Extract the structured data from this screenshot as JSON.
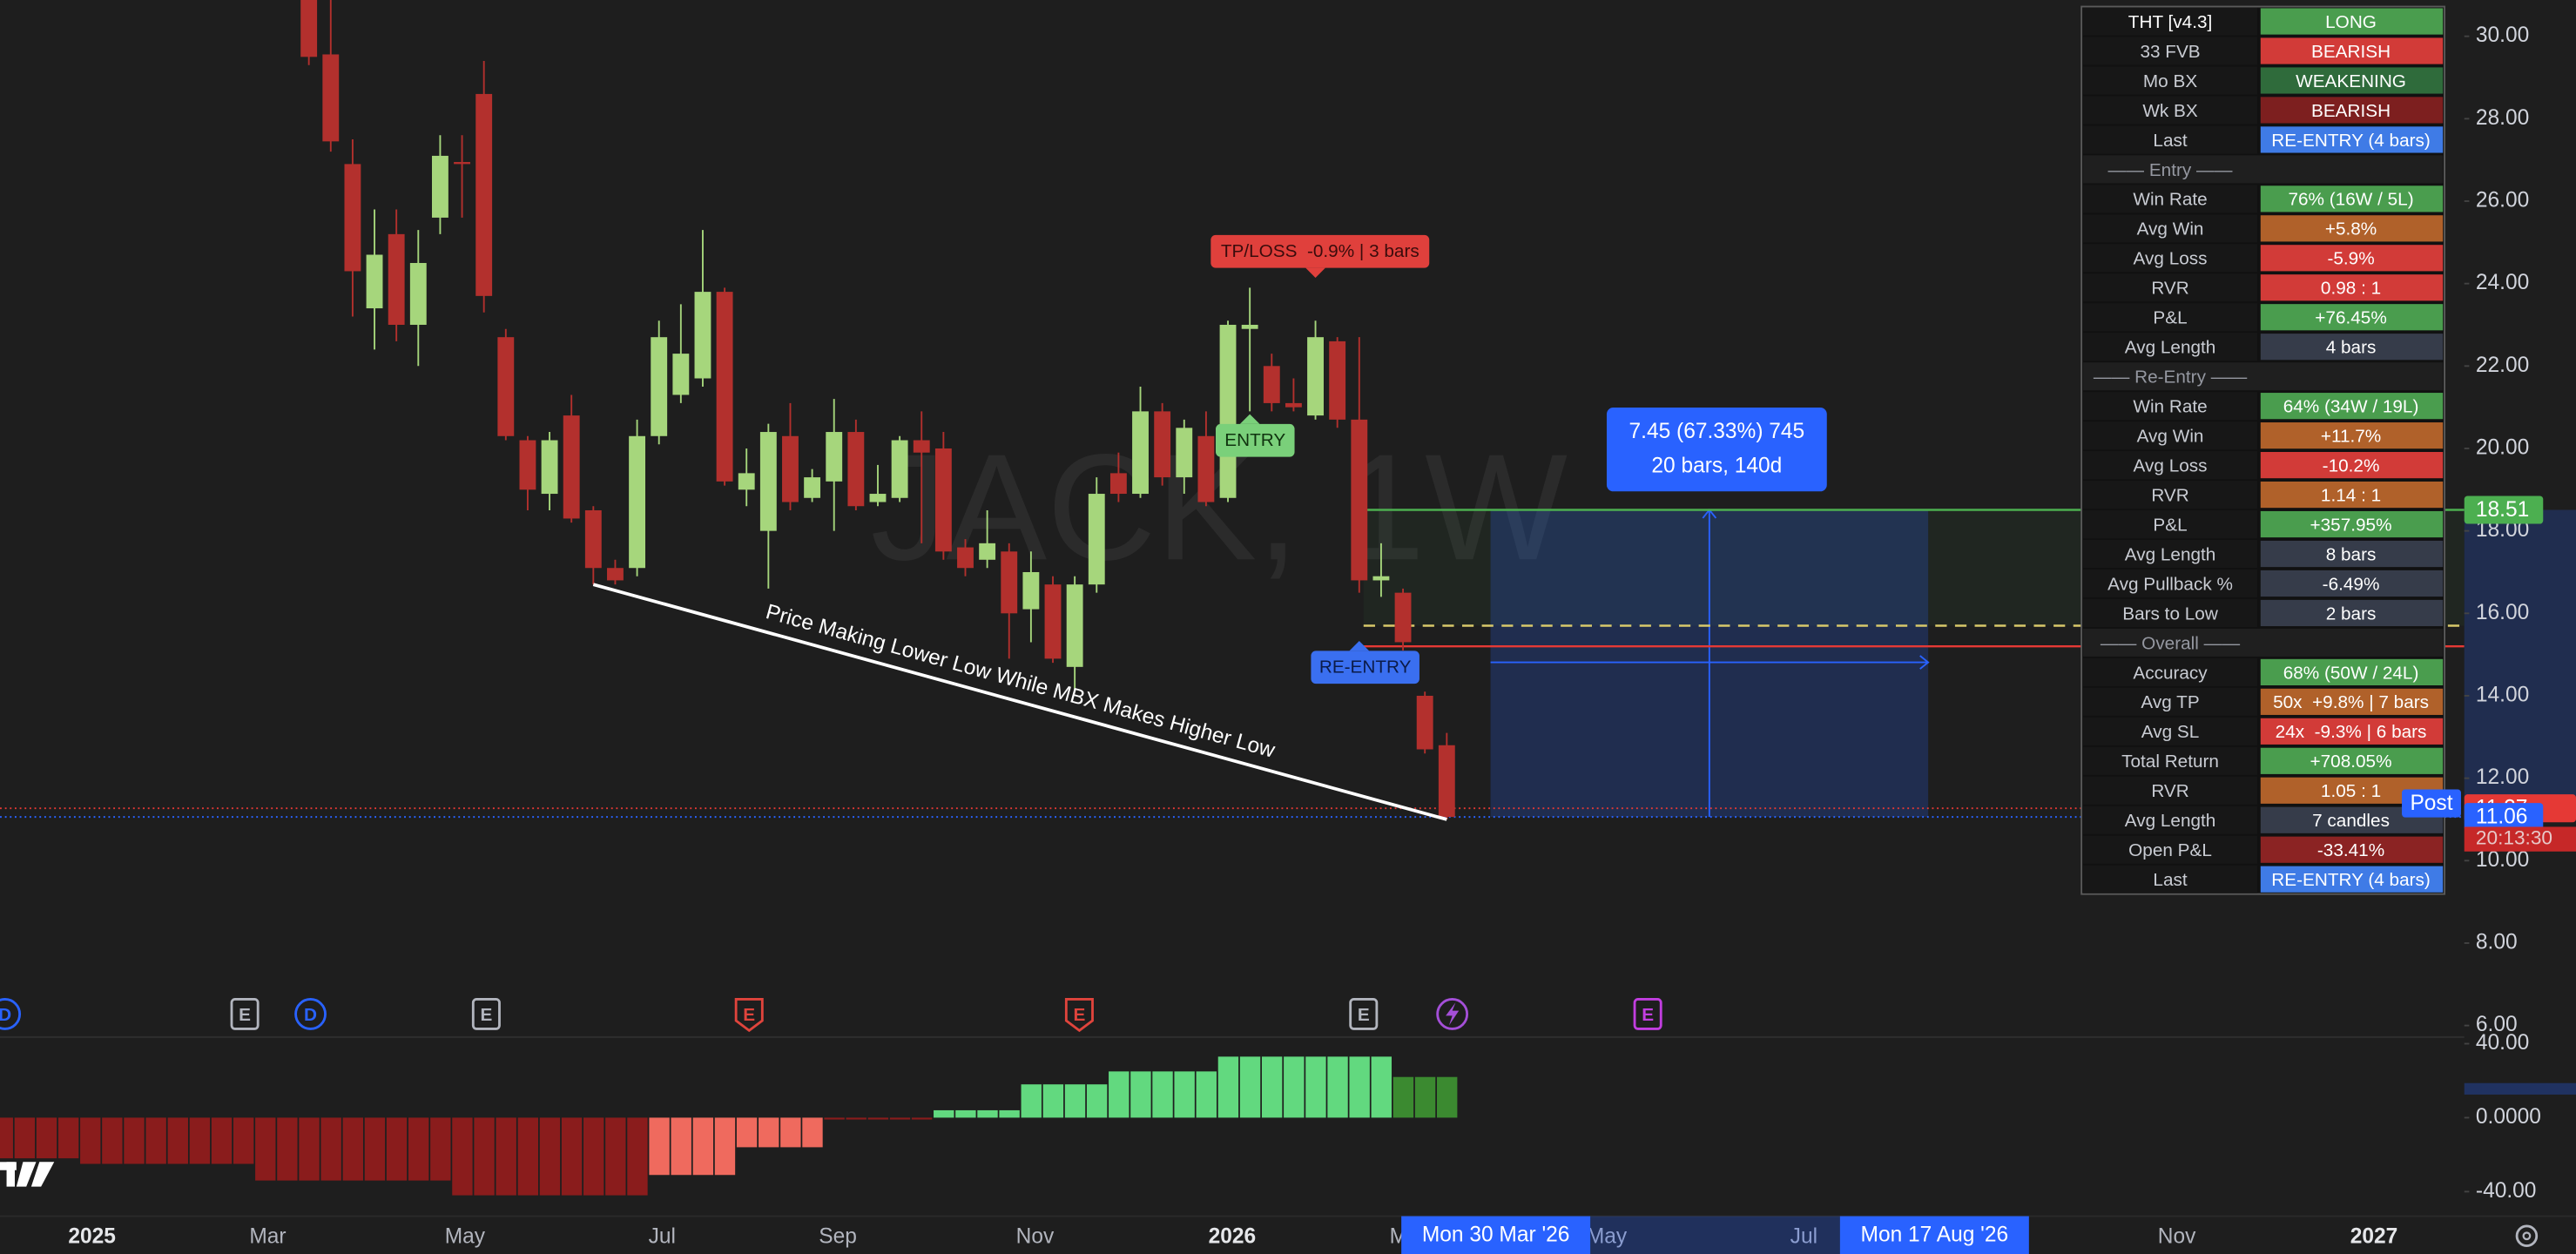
{
  "chart_data": [
    {
      "type": "candlestick",
      "watermark": "JACK, 1W",
      "open": [
        31.2,
        29.56,
        26.9,
        23.4,
        25.2,
        23.0,
        25.6,
        26.95,
        28.6,
        22.7,
        20.2,
        18.9,
        20.8,
        18.5,
        17.1,
        17.1,
        20.3,
        21.3,
        21.7,
        23.8,
        19.0,
        18.0,
        20.3,
        18.8,
        19.2,
        20.4,
        18.7,
        18.8,
        20.2,
        20.0,
        17.6,
        17.3,
        17.5,
        16.1,
        16.7,
        14.7,
        16.7,
        19.4,
        18.9,
        20.9,
        19.3,
        20.3,
        18.8,
        22.9,
        22.0,
        21.1,
        20.8,
        22.6,
        20.7,
        16.8,
        16.5,
        14.0,
        12.8
      ],
      "high": [
        31.5,
        30.9,
        27.5,
        25.8,
        25.8,
        25.3,
        27.6,
        27.6,
        29.4,
        22.9,
        20.3,
        20.4,
        21.3,
        18.6,
        17.3,
        20.7,
        23.1,
        23.5,
        25.3,
        23.9,
        20.0,
        20.6,
        21.1,
        19.5,
        21.2,
        20.7,
        19.6,
        20.3,
        20.9,
        20.4,
        17.8,
        18.5,
        17.7,
        17.5,
        16.9,
        16.9,
        19.3,
        19.9,
        21.5,
        21.1,
        20.7,
        20.9,
        23.1,
        23.9,
        22.3,
        21.7,
        23.1,
        22.7,
        22.7,
        17.7,
        16.6,
        14.1,
        13.1
      ],
      "low": [
        29.3,
        27.2,
        23.2,
        22.4,
        22.6,
        22.0,
        25.2,
        25.6,
        23.3,
        20.2,
        18.5,
        18.5,
        18.2,
        16.7,
        16.7,
        16.9,
        20.1,
        21.1,
        21.5,
        19.1,
        18.6,
        16.6,
        18.5,
        18.7,
        18.0,
        18.5,
        18.6,
        18.7,
        17.7,
        17.3,
        16.9,
        17.1,
        14.9,
        15.3,
        14.8,
        14.1,
        16.5,
        18.7,
        18.8,
        19.1,
        18.9,
        18.6,
        18.7,
        20.9,
        20.9,
        20.9,
        20.7,
        20.5,
        16.5,
        16.4,
        15.1,
        12.6,
        11.0
      ],
      "close": [
        29.5,
        27.45,
        24.3,
        24.7,
        23.0,
        24.5,
        27.1,
        26.9,
        23.7,
        20.3,
        19.0,
        20.2,
        18.3,
        17.1,
        16.8,
        20.3,
        22.7,
        22.3,
        23.8,
        19.2,
        19.4,
        20.4,
        18.7,
        19.3,
        20.4,
        18.6,
        18.9,
        20.2,
        19.9,
        17.5,
        17.1,
        17.7,
        16.0,
        17.0,
        14.9,
        16.7,
        18.9,
        18.9,
        20.9,
        19.3,
        20.5,
        18.7,
        23.0,
        23.0,
        21.1,
        21.0,
        22.7,
        20.7,
        16.8,
        16.9,
        15.3,
        12.7,
        11.06
      ],
      "up_color": "#a6d67c",
      "down_color": "#b3302d",
      "ylim": [
        5.76,
        30.88
      ],
      "yticks": [
        {
          "value": 30,
          "label": "30.00"
        },
        {
          "value": 28,
          "label": "28.00"
        },
        {
          "value": 26,
          "label": "26.00"
        },
        {
          "value": 24,
          "label": "24.00"
        },
        {
          "value": 22,
          "label": "22.00"
        },
        {
          "value": 20,
          "label": "20.00"
        },
        {
          "value": 18,
          "label": "18.00"
        },
        {
          "value": 16,
          "label": "16.00"
        },
        {
          "value": 14,
          "label": "14.00"
        },
        {
          "value": 12,
          "label": "12.00"
        },
        {
          "value": 10,
          "label": "10.00"
        },
        {
          "value": 8,
          "label": "8.00"
        },
        {
          "value": 6,
          "label": "6.00"
        }
      ],
      "levels": [
        {
          "value": 18.51,
          "color": "#4caf50",
          "style": "solid",
          "tag": true
        },
        {
          "value": 15.7,
          "color": "#d8c96a",
          "style": "dashed"
        },
        {
          "value": 15.2,
          "color": "#e53935",
          "style": "solid"
        },
        {
          "value": 11.27,
          "color": "#e53935",
          "style": "dotted",
          "tag": true
        },
        {
          "value": 11.06,
          "color": "#2962ff",
          "style": "dotted",
          "tag": true
        }
      ],
      "countdown": "20:13:30",
      "session": "Post",
      "trendline_text": "Price Making Lower Low While MBX Makes Higher Low",
      "signals": [
        {
          "text": "TP/LOSS  -0.9% | 3 bars",
          "color": "#e0403c",
          "text_color": "#3a0c0c"
        },
        {
          "text": "ENTRY",
          "color": "#7ad07a",
          "text_color": "#10330f"
        },
        {
          "text": "RE-ENTRY",
          "color": "#3a6ff0",
          "text_color": "#0b1b48"
        }
      ],
      "measure": [
        "7.45 (67.33%) 745",
        "20 bars, 140d"
      ]
    },
    {
      "type": "bar",
      "values": [
        -22,
        -22,
        -22,
        -22,
        -25,
        -25,
        -25,
        -25,
        -25,
        -25,
        -25,
        -25,
        -34,
        -34,
        -34,
        -34,
        -34,
        -34,
        -34,
        -34,
        -34,
        -42,
        -42,
        -42,
        -42,
        -42,
        -42,
        -42,
        -42,
        -42,
        -31,
        -31,
        -31,
        -31,
        -16,
        -16,
        -16,
        -16,
        -1,
        -1,
        -1,
        -1,
        -1,
        4,
        4,
        4,
        4,
        18,
        18,
        18,
        18,
        25,
        25,
        25,
        25,
        25,
        33,
        33,
        33,
        33,
        33,
        33,
        33,
        33,
        22,
        22,
        22
      ],
      "colors": [
        "#8a1c1c",
        "#8a1c1c",
        "#8a1c1c",
        "#8a1c1c",
        "#8a1c1c",
        "#8a1c1c",
        "#8a1c1c",
        "#8a1c1c",
        "#8a1c1c",
        "#8a1c1c",
        "#8a1c1c",
        "#8a1c1c",
        "#8a1c1c",
        "#8a1c1c",
        "#8a1c1c",
        "#8a1c1c",
        "#8a1c1c",
        "#8a1c1c",
        "#8a1c1c",
        "#8a1c1c",
        "#8a1c1c",
        "#8a1c1c",
        "#8a1c1c",
        "#8a1c1c",
        "#8a1c1c",
        "#8a1c1c",
        "#8a1c1c",
        "#8a1c1c",
        "#8a1c1c",
        "#8a1c1c",
        "#ef6a5e",
        "#ef6a5e",
        "#ef6a5e",
        "#ef6a5e",
        "#ef6a5e",
        "#ef6a5e",
        "#ef6a5e",
        "#ef6a5e",
        "#8a1c1c",
        "#8a1c1c",
        "#8a1c1c",
        "#8a1c1c",
        "#8a1c1c",
        "#62d97f",
        "#62d97f",
        "#62d97f",
        "#62d97f",
        "#62d97f",
        "#62d97f",
        "#62d97f",
        "#62d97f",
        "#62d97f",
        "#62d97f",
        "#62d97f",
        "#62d97f",
        "#62d97f",
        "#62d97f",
        "#62d97f",
        "#62d97f",
        "#62d97f",
        "#62d97f",
        "#62d97f",
        "#62d97f",
        "#62d97f",
        "#3b8a30",
        "#3b8a30",
        "#3b8a30"
      ],
      "ylim": [
        -53.3,
        42.7
      ],
      "yticks": [
        {
          "value": 40,
          "label": "40.00"
        },
        {
          "value": 0,
          "label": "0.0000"
        },
        {
          "value": -40,
          "label": "-40.00"
        }
      ]
    }
  ],
  "time_axis": {
    "labels": [
      "2025",
      "Mar",
      "May",
      "Jul",
      "Sep",
      "Nov",
      "2026",
      "Mar",
      "May",
      "Jul",
      "Nov",
      "2027"
    ],
    "range_labels": [
      "Mon 30 Mar '26",
      "Mon 17 Aug '26"
    ]
  },
  "markers": [
    {
      "label": "D",
      "shape": "circle",
      "color": "#2962ff"
    },
    {
      "label": "E",
      "shape": "square",
      "color": "#b2b5be"
    },
    {
      "label": "D",
      "shape": "circle",
      "color": "#2962ff"
    },
    {
      "label": "E",
      "shape": "square",
      "color": "#b2b5be"
    },
    {
      "label": "E",
      "shape": "flag",
      "color": "#e0443c"
    },
    {
      "label": "E",
      "shape": "flag",
      "color": "#e0443c"
    },
    {
      "label": "E",
      "shape": "square",
      "color": "#b2b5be"
    },
    {
      "label": "E",
      "shape": "square",
      "color": "#c23ee0"
    }
  ],
  "signal_table": {
    "rows": [
      {
        "label": "THT [v4.3]",
        "value": "LONG",
        "color": "#4a9d4e"
      },
      {
        "label": "33 FVB",
        "value": "BEARISH",
        "color": "#d23b38"
      },
      {
        "label": "Mo BX",
        "value": "WEAKENING",
        "color": "#2f6b3b"
      },
      {
        "label": "Wk BX",
        "value": "BEARISH",
        "color": "#7d1f1f"
      },
      {
        "label": "Last",
        "value": "RE-ENTRY (4 bars)",
        "color": "#3f7be6"
      },
      {
        "section": "—— Entry ——"
      },
      {
        "label": "Win Rate",
        "value": "76% (16W / 5L)",
        "color": "#4a9d4e"
      },
      {
        "label": "Avg Win",
        "value": "+5.8%",
        "color": "#b0612a"
      },
      {
        "label": "Avg Loss",
        "value": "-5.9%",
        "color": "#d23b38"
      },
      {
        "label": "RVR",
        "value": "0.98 : 1",
        "color": "#d23b38"
      },
      {
        "label": "P&L",
        "value": "+76.45%",
        "color": "#4a9d4e"
      },
      {
        "label": "Avg Length",
        "value": "4 bars",
        "color": "#363c4a"
      },
      {
        "section": "—— Re-Entry ——"
      },
      {
        "label": "Win Rate",
        "value": "64% (34W / 19L)",
        "color": "#4a9d4e"
      },
      {
        "label": "Avg Win",
        "value": "+11.7%",
        "color": "#b0612a"
      },
      {
        "label": "Avg Loss",
        "value": "-10.2%",
        "color": "#d23b38"
      },
      {
        "label": "RVR",
        "value": "1.14 : 1",
        "color": "#b0612a"
      },
      {
        "label": "P&L",
        "value": "+357.95%",
        "color": "#4a9d4e"
      },
      {
        "label": "Avg Length",
        "value": "8 bars",
        "color": "#363c4a"
      },
      {
        "label": "Avg Pullback %",
        "value": "-6.49%",
        "color": "#363c4a"
      },
      {
        "label": "Bars to Low",
        "value": "2 bars",
        "color": "#363c4a"
      },
      {
        "section": "—— Overall ——"
      },
      {
        "label": "Accuracy",
        "value": "68% (50W / 24L)",
        "color": "#4a9d4e"
      },
      {
        "label": "Avg TP",
        "value": "50x  +9.8% | 7 bars",
        "color": "#b0612a"
      },
      {
        "label": "Avg SL",
        "value": "24x  -9.3% | 6 bars",
        "color": "#d23b38"
      },
      {
        "label": "Total Return",
        "value": "+708.05%",
        "color": "#4a9d4e"
      },
      {
        "label": "RVR",
        "value": "1.05 : 1",
        "color": "#b0612a"
      },
      {
        "label": "Avg Length",
        "value": "7 candles",
        "color": "#363c4a"
      },
      {
        "label": "Open P&L",
        "value": "-33.41%",
        "color": "#8b2323"
      },
      {
        "label": "Last",
        "value": "RE-ENTRY (4 bars)",
        "color": "#3f7be6"
      }
    ]
  }
}
